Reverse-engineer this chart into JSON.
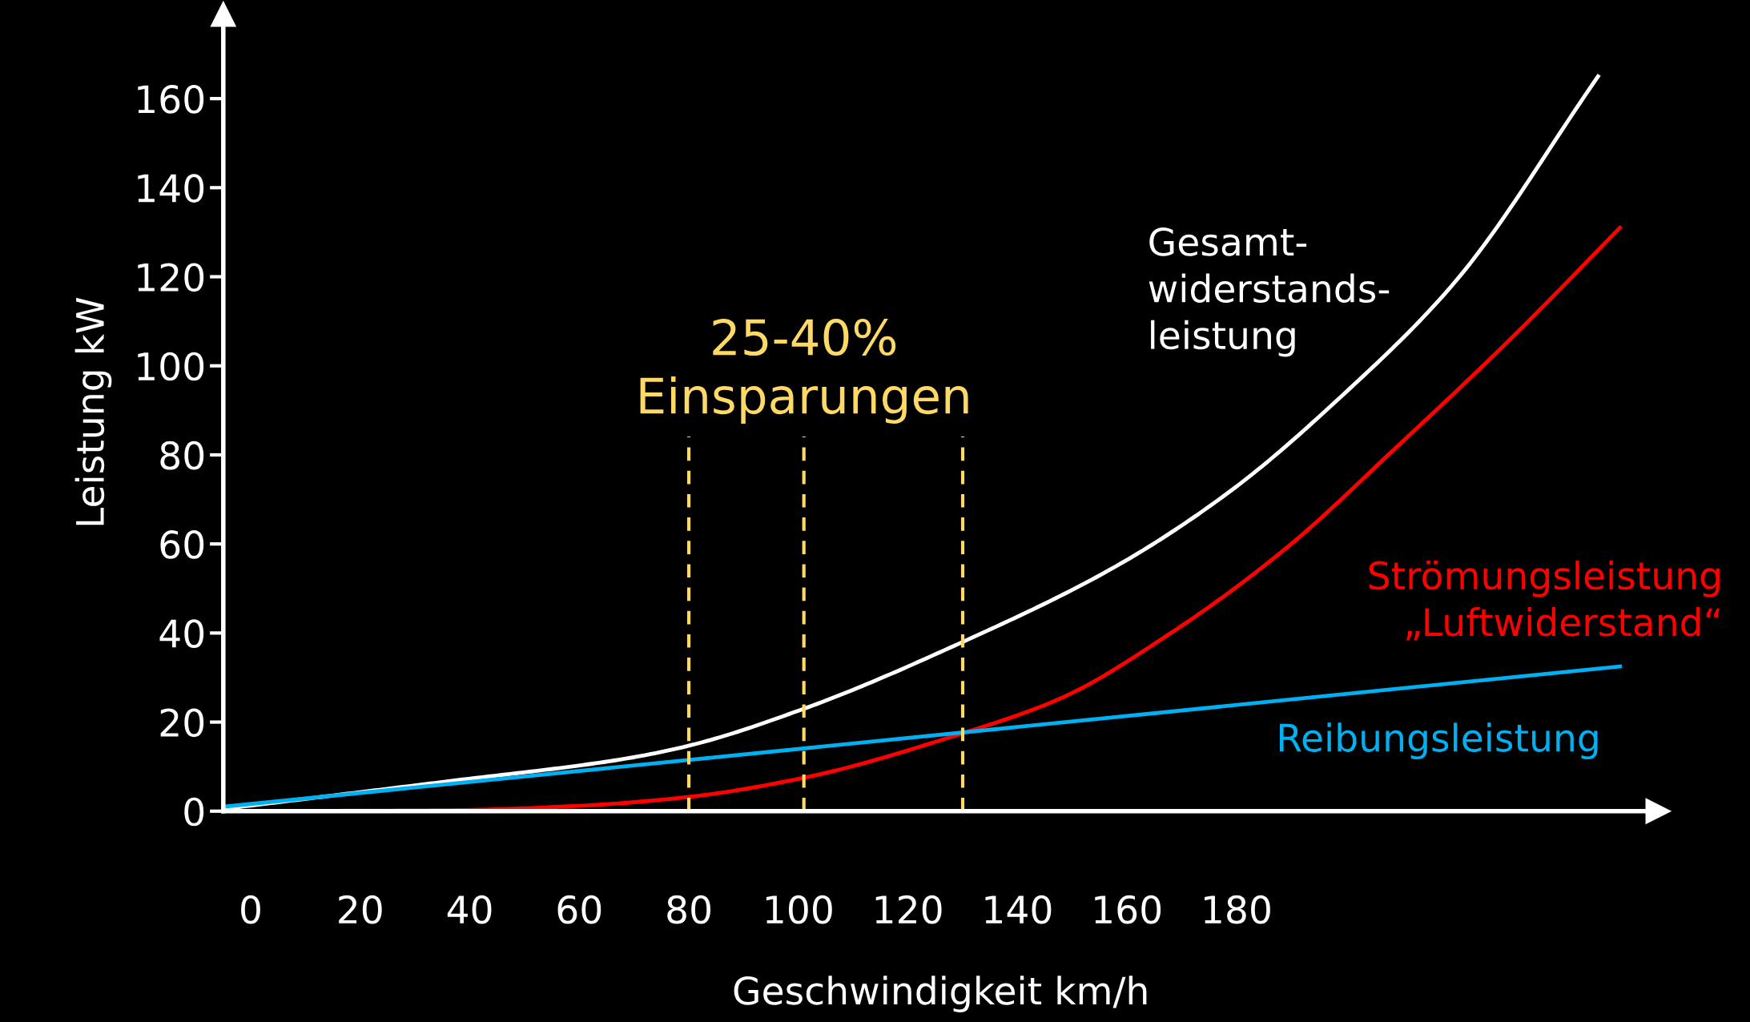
{
  "chart_data": {
    "type": "line",
    "xlabel": "Geschwindigkeit km/h",
    "ylabel": "Leistung kW",
    "xlim": [
      -5,
      257
    ],
    "xticks": [
      0,
      20,
      40,
      60,
      80,
      100,
      120,
      140,
      160,
      180
    ],
    "ylim": [
      0,
      179
    ],
    "yticks": [
      0,
      20,
      40,
      60,
      80,
      100,
      120,
      140,
      160
    ],
    "grid": false,
    "legend": false,
    "marker": "none",
    "line_style": "solid",
    "series": [
      {
        "name": "Gesamt-\nwiderstands-\nleistung",
        "color": "#ffffff",
        "x": [
          -5,
          36,
          68,
          80,
          101,
          130,
          158,
          179,
          199,
          220,
          246
        ],
        "values": [
          0.5,
          6.7,
          11.7,
          14.7,
          23,
          38,
          55,
          72,
          93,
          119,
          165
        ]
      },
      {
        "name": "Strömungsleistung\n„Luftwiderstand“",
        "color": "#ff0000",
        "x": [
          -5,
          36,
          60,
          80,
          101,
          130,
          148,
          168,
          189,
          209,
          230,
          250
        ],
        "values": [
          0,
          0.2,
          1.2,
          3.2,
          7.5,
          17.5,
          25.4,
          40,
          59,
          81.5,
          106,
          131
        ]
      },
      {
        "name": "Reibungsleistung",
        "color": "#00b0f0",
        "x": [
          -5,
          250
        ],
        "values": [
          1,
          32.5
        ]
      }
    ],
    "ref_lines": [
      {
        "axis": "x",
        "value": 80,
        "color": "#ffd966",
        "line_style": "dashed"
      },
      {
        "axis": "x",
        "value": 101,
        "color": "#ffd966",
        "line_style": "dashed"
      },
      {
        "axis": "x",
        "value": 130,
        "color": "#ffd966",
        "line_style": "dashed"
      }
    ],
    "annotations": [
      {
        "text": "25-40%\nEinsparungen",
        "x": 101,
        "y": 82
      }
    ]
  }
}
